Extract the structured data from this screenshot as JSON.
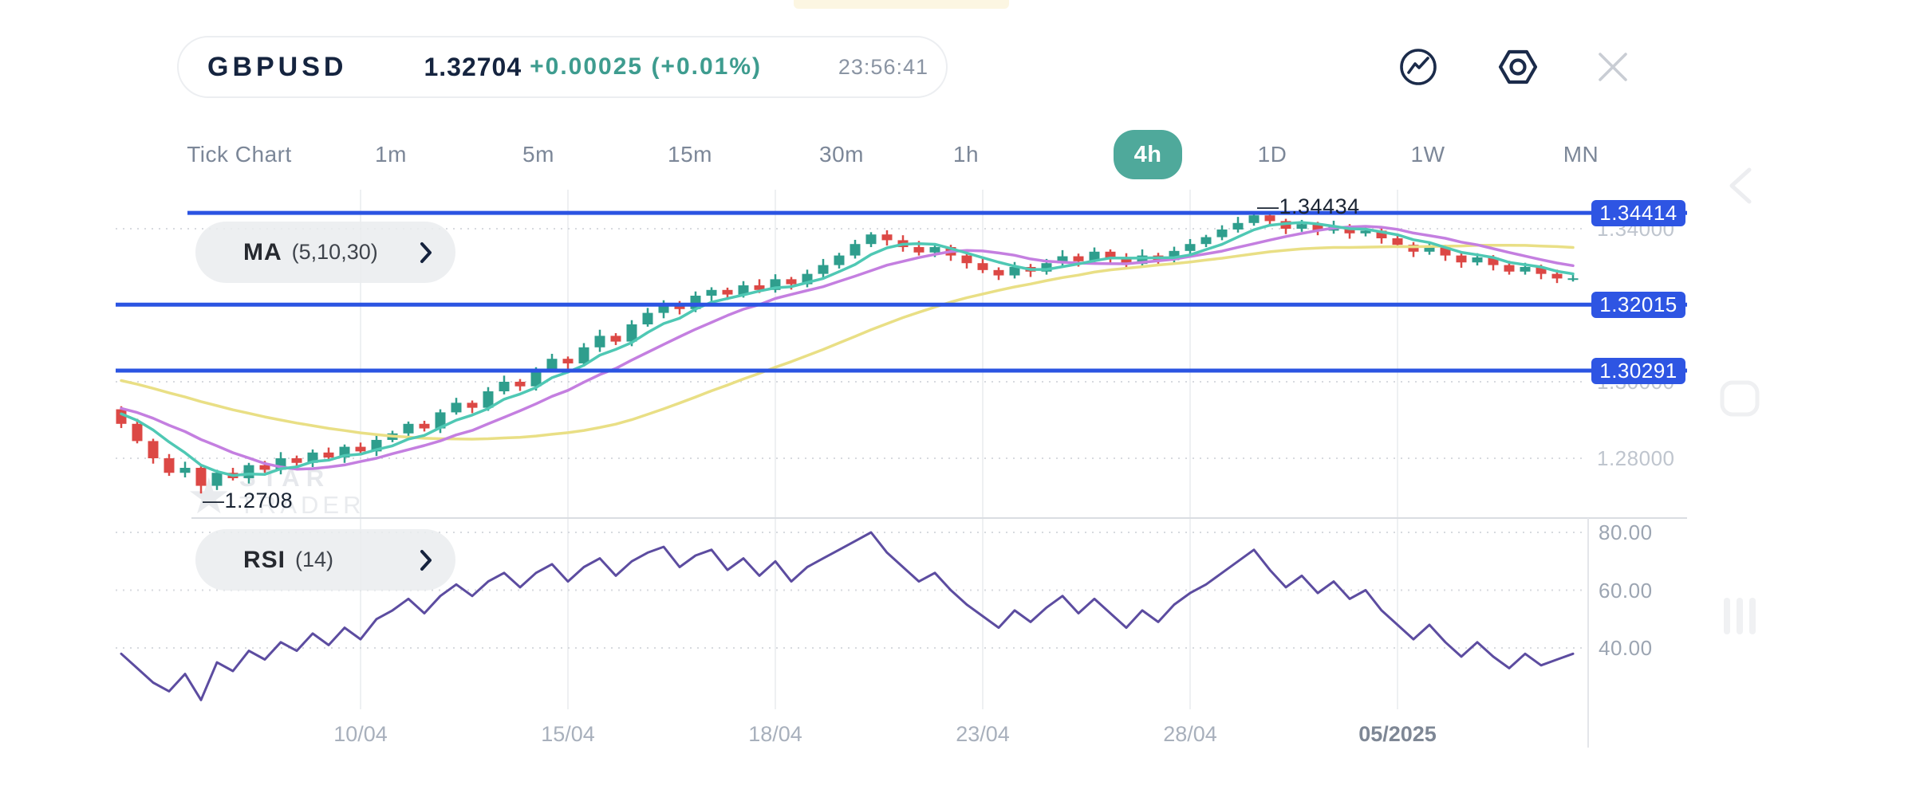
{
  "header": {
    "symbol": "GBPUSD",
    "price": "1.32704",
    "change": "+0.00025 (+0.01%)",
    "time": "23:56:41"
  },
  "timeframes": [
    "Tick Chart",
    "1m",
    "5m",
    "15m",
    "30m",
    "1h",
    "4h",
    "1D",
    "1W",
    "MN"
  ],
  "active_timeframe": "4h",
  "indicators": {
    "ma_label": "MA",
    "ma_params": "(5,10,30)",
    "rsi_label": "RSI",
    "rsi_params": "(14)"
  },
  "watermark": {
    "line1": "STAR",
    "line2": "TRADER",
    "star": "★"
  },
  "colors": {
    "up": "#2F9E8D",
    "down": "#DC4845",
    "ma5": "#4FC8B4",
    "ma10": "#C47FE0",
    "ma30": "#E9DF85",
    "rsi_line": "#5C4CA0",
    "level_line": "#2B54E2",
    "level_box": "#2E55E3",
    "accent_teal": "#4FA99B",
    "navy": "#15243F"
  },
  "chart_data": {
    "type": "candlestick",
    "title": "GBPUSD 4h",
    "price_axis_ticks": [
      {
        "label": "1.34000",
        "value": 1.34
      },
      {
        "label": "1.32000",
        "value": 1.32
      },
      {
        "label": "1.30000",
        "value": 1.3
      },
      {
        "label": "1.28000",
        "value": 1.28
      }
    ],
    "levels": [
      {
        "label": "1.34414",
        "value": 1.34414
      },
      {
        "label": "1.32015",
        "value": 1.32015
      },
      {
        "label": "1.30291",
        "value": 1.30291
      }
    ],
    "annotations": [
      {
        "text": "—1.34434",
        "candle": 71,
        "price": 1.34434,
        "side": "high"
      },
      {
        "text": "—1.2708",
        "candle": 5,
        "price": 1.2708,
        "side": "low"
      }
    ],
    "x_axis_ticks": [
      {
        "label": "10/04",
        "candle": 15,
        "bold": false
      },
      {
        "label": "15/04",
        "candle": 28,
        "bold": false
      },
      {
        "label": "18/04",
        "candle": 41,
        "bold": false
      },
      {
        "label": "23/04",
        "candle": 54,
        "bold": false
      },
      {
        "label": "28/04",
        "candle": 67,
        "bold": false
      },
      {
        "label": "05/2025",
        "candle": 80,
        "bold": true
      }
    ],
    "ma_periods": [
      5,
      10,
      30
    ],
    "ma_warmup": [
      1.314,
      1.3132,
      1.312,
      1.3112,
      1.31,
      1.3092,
      1.308,
      1.3072,
      1.306,
      1.3052,
      1.304,
      1.303,
      1.3022,
      1.3012,
      1.3002,
      1.2995,
      1.2988,
      1.298,
      1.2972,
      1.2965,
      1.296,
      1.2955,
      1.295,
      1.2945,
      1.294,
      1.2935,
      1.293,
      1.2925,
      1.292,
      1.2915
    ],
    "candles": [
      [
        1.2928,
        1.2936,
        1.2879,
        1.289
      ],
      [
        1.289,
        1.2903,
        1.2839,
        1.2845
      ],
      [
        1.2845,
        1.2851,
        1.2786,
        1.28
      ],
      [
        1.28,
        1.2811,
        1.2754,
        1.2762
      ],
      [
        1.2762,
        1.2791,
        1.275,
        1.2775
      ],
      [
        1.2775,
        1.2782,
        1.2708,
        1.2728
      ],
      [
        1.2728,
        1.277,
        1.2717,
        1.2762
      ],
      [
        1.2762,
        1.2775,
        1.2742,
        1.2748
      ],
      [
        1.2748,
        1.2788,
        1.2734,
        1.2782
      ],
      [
        1.2782,
        1.2793,
        1.2762,
        1.277
      ],
      [
        1.277,
        1.2816,
        1.2758,
        1.28
      ],
      [
        1.28,
        1.2807,
        1.2779,
        1.2788
      ],
      [
        1.2788,
        1.2823,
        1.2777,
        1.2815
      ],
      [
        1.2815,
        1.2828,
        1.2796,
        1.2802
      ],
      [
        1.2802,
        1.2836,
        1.2788,
        1.283
      ],
      [
        1.283,
        1.2841,
        1.281,
        1.2818
      ],
      [
        1.2818,
        1.2864,
        1.2806,
        1.2848
      ],
      [
        1.2848,
        1.2872,
        1.2842,
        1.2865
      ],
      [
        1.2865,
        1.2896,
        1.2851,
        1.289
      ],
      [
        1.289,
        1.2898,
        1.287,
        1.2878
      ],
      [
        1.2878,
        1.2928,
        1.2866,
        1.292
      ],
      [
        1.292,
        1.2958,
        1.2914,
        1.2945
      ],
      [
        1.2945,
        1.2951,
        1.2918,
        1.2932
      ],
      [
        1.2932,
        1.2986,
        1.2924,
        1.2975
      ],
      [
        1.2975,
        1.3016,
        1.2967,
        1.3
      ],
      [
        1.3,
        1.3007,
        1.2976,
        1.2988
      ],
      [
        1.2988,
        1.3038,
        1.2977,
        1.303
      ],
      [
        1.303,
        1.3073,
        1.3024,
        1.306
      ],
      [
        1.306,
        1.3066,
        1.3034,
        1.3048
      ],
      [
        1.3048,
        1.3101,
        1.304,
        1.309
      ],
      [
        1.309,
        1.3136,
        1.3078,
        1.312
      ],
      [
        1.312,
        1.3127,
        1.3096,
        1.3105
      ],
      [
        1.3105,
        1.3161,
        1.3093,
        1.315
      ],
      [
        1.315,
        1.3193,
        1.3144,
        1.318
      ],
      [
        1.318,
        1.3213,
        1.3166,
        1.3205
      ],
      [
        1.3205,
        1.3211,
        1.3176,
        1.319
      ],
      [
        1.319,
        1.3236,
        1.3182,
        1.3225
      ],
      [
        1.3225,
        1.3247,
        1.3211,
        1.324
      ],
      [
        1.324,
        1.3246,
        1.3214,
        1.3228
      ],
      [
        1.3228,
        1.3263,
        1.322,
        1.3252
      ],
      [
        1.3252,
        1.3268,
        1.3232,
        1.324
      ],
      [
        1.324,
        1.3281,
        1.3233,
        1.3268
      ],
      [
        1.3268,
        1.3274,
        1.3241,
        1.3255
      ],
      [
        1.3255,
        1.3293,
        1.3247,
        1.3282
      ],
      [
        1.3282,
        1.3321,
        1.327,
        1.3305
      ],
      [
        1.3305,
        1.3337,
        1.3296,
        1.333
      ],
      [
        1.333,
        1.3371,
        1.3322,
        1.336
      ],
      [
        1.336,
        1.3391,
        1.3352,
        1.3385
      ],
      [
        1.3385,
        1.3396,
        1.3356,
        1.337
      ],
      [
        1.337,
        1.3383,
        1.334,
        1.3352
      ],
      [
        1.3352,
        1.3368,
        1.333,
        1.3338
      ],
      [
        1.3338,
        1.3359,
        1.3326,
        1.3352
      ],
      [
        1.3352,
        1.3358,
        1.3316,
        1.333
      ],
      [
        1.333,
        1.3341,
        1.3296,
        1.331
      ],
      [
        1.331,
        1.3326,
        1.3284,
        1.3292
      ],
      [
        1.3292,
        1.3299,
        1.3266,
        1.3278
      ],
      [
        1.3278,
        1.3313,
        1.327,
        1.33
      ],
      [
        1.33,
        1.3308,
        1.3274,
        1.3288
      ],
      [
        1.3288,
        1.3321,
        1.328,
        1.331
      ],
      [
        1.331,
        1.3344,
        1.3302,
        1.3328
      ],
      [
        1.3328,
        1.3335,
        1.3301,
        1.3315
      ],
      [
        1.3315,
        1.3351,
        1.3309,
        1.334
      ],
      [
        1.334,
        1.3346,
        1.3311,
        1.3325
      ],
      [
        1.3325,
        1.3336,
        1.3294,
        1.3308
      ],
      [
        1.3308,
        1.3346,
        1.33,
        1.333
      ],
      [
        1.333,
        1.3337,
        1.3304,
        1.3318
      ],
      [
        1.3318,
        1.3353,
        1.331,
        1.3342
      ],
      [
        1.3342,
        1.3373,
        1.3334,
        1.336
      ],
      [
        1.336,
        1.3384,
        1.3352,
        1.3378
      ],
      [
        1.3378,
        1.3409,
        1.337,
        1.3398
      ],
      [
        1.3398,
        1.3431,
        1.339,
        1.3415
      ],
      [
        1.3415,
        1.34434,
        1.3408,
        1.3435
      ],
      [
        1.3435,
        1.3441,
        1.3406,
        1.342
      ],
      [
        1.342,
        1.3426,
        1.3386,
        1.34
      ],
      [
        1.34,
        1.3423,
        1.3392,
        1.3412
      ],
      [
        1.3412,
        1.3418,
        1.3383,
        1.3395
      ],
      [
        1.3395,
        1.3421,
        1.3387,
        1.3405
      ],
      [
        1.3405,
        1.3412,
        1.3374,
        1.3388
      ],
      [
        1.3388,
        1.3404,
        1.338,
        1.3395
      ],
      [
        1.3395,
        1.3402,
        1.3361,
        1.3375
      ],
      [
        1.3375,
        1.3386,
        1.335,
        1.3358
      ],
      [
        1.3358,
        1.3365,
        1.3326,
        1.334
      ],
      [
        1.334,
        1.3363,
        1.3332,
        1.3352
      ],
      [
        1.3352,
        1.3358,
        1.3316,
        1.333
      ],
      [
        1.333,
        1.3341,
        1.3298,
        1.3312
      ],
      [
        1.3312,
        1.3336,
        1.3304,
        1.3325
      ],
      [
        1.3325,
        1.3331,
        1.3291,
        1.3305
      ],
      [
        1.3305,
        1.3316,
        1.328,
        1.3288
      ],
      [
        1.3288,
        1.3311,
        1.328,
        1.33
      ],
      [
        1.33,
        1.3306,
        1.3268,
        1.3282
      ],
      [
        1.3282,
        1.3293,
        1.3258,
        1.327
      ],
      [
        1.327,
        1.3284,
        1.3262,
        1.32704
      ]
    ],
    "rsi": {
      "period": 14,
      "ticks": [
        {
          "label": "80.00",
          "value": 80
        },
        {
          "label": "60.00",
          "value": 60
        },
        {
          "label": "40.00",
          "value": 40
        }
      ],
      "values": [
        38,
        33,
        28,
        25,
        31,
        22,
        35,
        32,
        39,
        36,
        42,
        39,
        45,
        41,
        47,
        43,
        50,
        53,
        57,
        52,
        58,
        62,
        58,
        63,
        66,
        61,
        66,
        69,
        63,
        68,
        71,
        65,
        70,
        73,
        75,
        68,
        72,
        74,
        67,
        71,
        65,
        70,
        63,
        68,
        71,
        74,
        77,
        80,
        73,
        68,
        63,
        66,
        60,
        55,
        51,
        47,
        53,
        49,
        54,
        58,
        52,
        57,
        52,
        47,
        53,
        49,
        55,
        59,
        62,
        66,
        70,
        74,
        67,
        61,
        65,
        59,
        63,
        57,
        60,
        53,
        48,
        43,
        48,
        42,
        37,
        42,
        37,
        33,
        38,
        34,
        36,
        38
      ]
    }
  }
}
